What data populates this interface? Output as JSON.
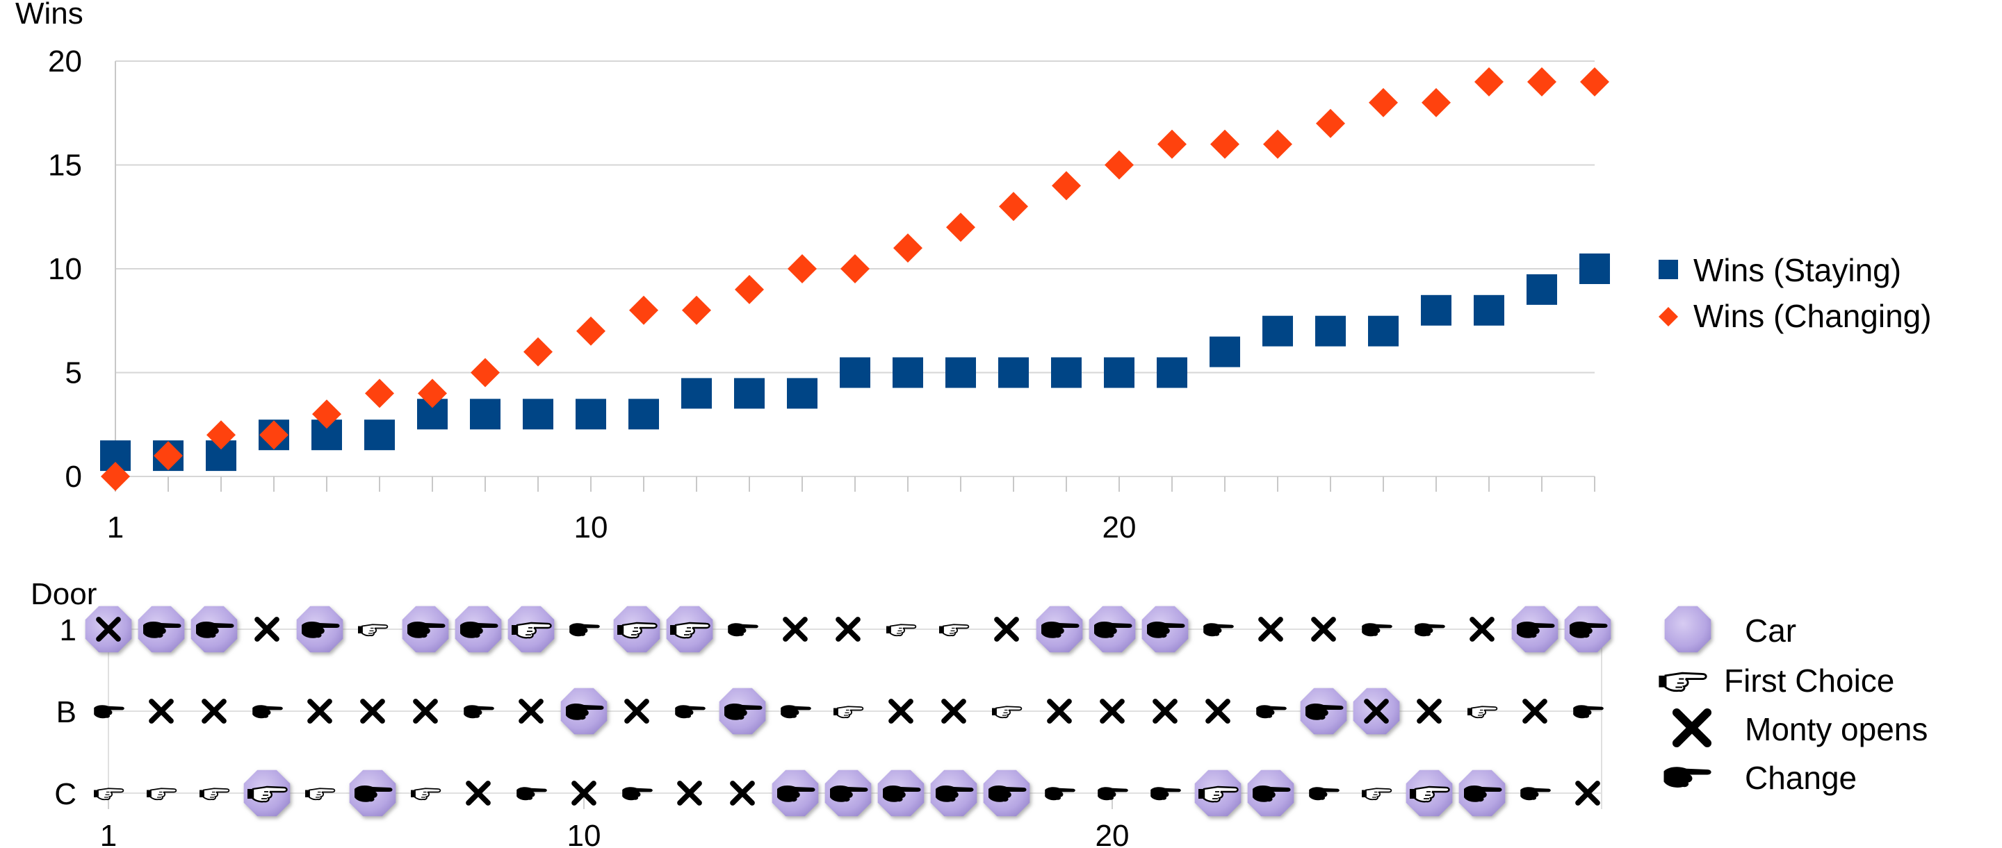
{
  "chart_data": [
    {
      "type": "scatter",
      "title": "",
      "ylabel": "Wins",
      "xlabel": "",
      "x": [
        1,
        2,
        3,
        4,
        5,
        6,
        7,
        8,
        9,
        10,
        11,
        12,
        13,
        14,
        15,
        16,
        17,
        18,
        19,
        20,
        21,
        22,
        23,
        24,
        25,
        26,
        27,
        28,
        29
      ],
      "xlim": [
        1,
        29
      ],
      "ylim": [
        0,
        20
      ],
      "x_ticks": [
        "1",
        "10",
        "20"
      ],
      "y_ticks": [
        "0",
        "5",
        "10",
        "15",
        "20"
      ],
      "grid": "horizontal",
      "legend_position": "right",
      "series": [
        {
          "name": "Wins (Staying)",
          "marker": "square",
          "color": "#004586",
          "values": [
            1,
            1,
            1,
            2,
            2,
            2,
            3,
            3,
            3,
            3,
            3,
            4,
            4,
            4,
            5,
            5,
            5,
            5,
            5,
            5,
            5,
            6,
            7,
            7,
            7,
            8,
            8,
            9,
            10
          ]
        },
        {
          "name": "Wins (Changing)",
          "marker": "diamond",
          "color": "#ff420e",
          "values": [
            0,
            1,
            2,
            2,
            3,
            4,
            4,
            5,
            6,
            7,
            8,
            8,
            9,
            10,
            10,
            11,
            12,
            13,
            14,
            15,
            16,
            16,
            16,
            17,
            18,
            18,
            19,
            19,
            19
          ]
        }
      ]
    },
    {
      "type": "scatter",
      "title": "",
      "ylabel": "Door",
      "x": [
        1,
        2,
        3,
        4,
        5,
        6,
        7,
        8,
        9,
        10,
        11,
        12,
        13,
        14,
        15,
        16,
        17,
        18,
        19,
        20,
        21,
        22,
        23,
        24,
        25,
        26,
        27,
        28,
        29
      ],
      "xlim": [
        1,
        29
      ],
      "x_ticks": [
        "1",
        "10",
        "20"
      ],
      "row_labels": [
        "1",
        "B",
        "C"
      ],
      "legend_position": "right",
      "legend": [
        {
          "key": "car",
          "label": "Car",
          "color": "#b4a7e0"
        },
        {
          "key": "first",
          "label": "First Choice",
          "icon": "hand-outline-icon"
        },
        {
          "key": "monty",
          "label": "Monty opens",
          "icon": "x-icon"
        },
        {
          "key": "change",
          "label": "Change",
          "icon": "hand-filled-icon"
        }
      ],
      "car": [
        "1",
        "1",
        "1",
        "C",
        "1",
        "C",
        "1",
        "1",
        "1",
        "B",
        "1",
        "1",
        "B",
        "C",
        "C",
        "C",
        "C",
        "C",
        "1",
        "1",
        "1",
        "C",
        "C",
        "B",
        "B",
        "C",
        "C",
        "1",
        "1"
      ],
      "first": [
        "C",
        "C",
        "C",
        "C",
        "C",
        "1",
        "C",
        "C",
        "1",
        "C",
        "1",
        "1",
        "C",
        "1",
        "B",
        "1",
        "1",
        "B",
        "B",
        "B",
        "B",
        "C",
        "1",
        "1",
        "C",
        "C",
        "B",
        "B",
        "C"
      ],
      "monty": [
        "1",
        "B",
        "B",
        "1",
        "B",
        "B",
        "B",
        "C",
        "B",
        "C",
        "B",
        "C",
        "C",
        "1",
        "1",
        "B",
        "B",
        "1",
        "B",
        "B",
        "B",
        "B",
        "1",
        "1",
        "B",
        "B",
        "1",
        "B",
        "C"
      ]
    }
  ]
}
